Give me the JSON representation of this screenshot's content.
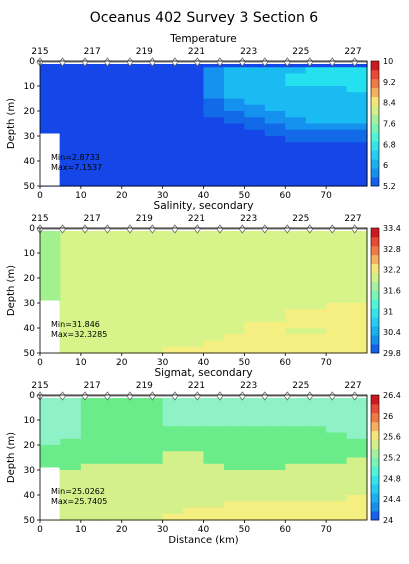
{
  "title": "Oceanus 402 Survey 3 Section 6",
  "chart_data": [
    {
      "type": "heatmap",
      "title": "Temperature",
      "ylabel": "Depth (m)",
      "xlabel": "",
      "xlim": [
        0,
        80
      ],
      "ylim": [
        50,
        0
      ],
      "x_ticks": [
        0,
        10,
        20,
        30,
        40,
        50,
        60,
        70
      ],
      "y_ticks": [
        0,
        10,
        20,
        30,
        40,
        50
      ],
      "station_labels": [
        "215",
        "217",
        "219",
        "221",
        "223",
        "225",
        "227"
      ],
      "station_x": [
        0,
        5.5,
        11,
        16.5,
        22,
        27.5,
        33,
        38.5,
        44,
        49.5,
        55,
        60.5,
        66,
        71.5,
        77
      ],
      "colorbar": {
        "ticks": [
          "5.2",
          "6",
          "6.8",
          "7.6",
          "8.4",
          "9.2",
          "10"
        ],
        "min": 5.2,
        "max": 10,
        "colors": [
          "#1560ec",
          "#1590ec",
          "#1ab0f0",
          "#25cdf2",
          "#33e5ea",
          "#50f5d8",
          "#7af5b8",
          "#a6f0a0",
          "#d3f08a",
          "#f5e67a",
          "#f5b060",
          "#ef7a45",
          "#e84a35",
          "#cc1a20"
        ]
      },
      "annotations": [
        "Min=2.8733",
        "Max=7.1537"
      ],
      "field_colors": [
        "#1547e8",
        "#136ae8",
        "#1591f0",
        "#1abaf2",
        "#25e0ee"
      ],
      "field": [
        [
          0,
          0,
          0,
          0,
          0,
          0,
          0,
          0,
          0,
          0,
          0,
          0,
          0,
          0,
          0,
          0
        ],
        [
          0,
          0,
          0,
          0,
          0,
          0,
          0,
          0,
          2,
          3,
          3,
          3,
          3,
          4,
          4,
          4
        ],
        [
          0,
          0,
          0,
          0,
          0,
          0,
          0,
          0,
          2,
          3,
          3,
          3,
          4,
          4,
          4,
          4
        ],
        [
          0,
          0,
          0,
          0,
          0,
          0,
          0,
          0,
          2,
          3,
          3,
          3,
          4,
          4,
          4,
          4
        ],
        [
          0,
          0,
          0,
          0,
          0,
          0,
          0,
          0,
          2,
          3,
          3,
          3,
          3,
          3,
          3,
          4
        ],
        [
          0,
          0,
          0,
          0,
          0,
          0,
          0,
          0,
          2,
          3,
          3,
          3,
          3,
          3,
          3,
          3
        ],
        [
          0,
          0,
          0,
          0,
          0,
          0,
          0,
          0,
          1,
          2,
          3,
          3,
          3,
          3,
          3,
          3
        ],
        [
          0,
          0,
          0,
          0,
          0,
          0,
          0,
          0,
          1,
          2,
          2,
          3,
          3,
          3,
          3,
          3
        ],
        [
          0,
          0,
          0,
          0,
          0,
          0,
          0,
          0,
          1,
          1,
          2,
          2,
          3,
          3,
          3,
          3
        ],
        [
          0,
          0,
          0,
          0,
          0,
          0,
          0,
          0,
          0,
          1,
          1,
          2,
          2,
          3,
          3,
          3
        ],
        [
          0,
          0,
          0,
          0,
          0,
          0,
          0,
          0,
          0,
          0,
          1,
          1,
          2,
          2,
          2,
          2
        ],
        [
          0,
          0,
          0,
          0,
          0,
          0,
          0,
          0,
          0,
          0,
          0,
          1,
          1,
          1,
          1,
          1
        ],
        [
          0,
          0,
          0,
          0,
          0,
          0,
          0,
          0,
          0,
          0,
          0,
          0,
          1,
          1,
          1,
          1
        ],
        [
          0,
          0,
          0,
          0,
          0,
          0,
          0,
          0,
          0,
          0,
          0,
          0,
          0,
          0,
          0,
          0
        ],
        [
          0,
          0,
          0,
          0,
          0,
          0,
          0,
          0,
          0,
          0,
          0,
          0,
          0,
          0,
          0,
          0
        ],
        [
          0,
          0,
          0,
          0,
          0,
          0,
          0,
          0,
          0,
          0,
          0,
          0,
          0,
          0,
          0,
          0
        ],
        [
          0,
          0,
          0,
          0,
          0,
          0,
          0,
          0,
          0,
          0,
          0,
          0,
          0,
          0,
          0,
          0
        ],
        [
          0,
          0,
          0,
          0,
          0,
          0,
          0,
          0,
          0,
          0,
          0,
          0,
          0,
          0,
          0,
          0
        ],
        [
          0,
          0,
          0,
          0,
          0,
          0,
          0,
          0,
          0,
          0,
          0,
          0,
          0,
          0,
          0,
          0
        ],
        [
          0,
          0,
          0,
          0,
          0,
          0,
          0,
          0,
          0,
          0,
          0,
          0,
          0,
          0,
          0,
          0
        ]
      ]
    },
    {
      "type": "heatmap",
      "title": "Salinity, secondary",
      "ylabel": "Depth (m)",
      "xlabel": "",
      "xlim": [
        0,
        80
      ],
      "ylim": [
        50,
        0
      ],
      "x_ticks": [
        0,
        10,
        20,
        30,
        40,
        50,
        60,
        70
      ],
      "y_ticks": [
        0,
        10,
        20,
        30,
        40,
        50
      ],
      "station_labels": [
        "215",
        "217",
        "219",
        "221",
        "223",
        "225",
        "227"
      ],
      "station_x": [
        0,
        5.5,
        11,
        16.5,
        22,
        27.5,
        33,
        38.5,
        44,
        49.5,
        55,
        60.5,
        66,
        71.5,
        77
      ],
      "colorbar": {
        "ticks": [
          "29.8",
          "30.4",
          "31",
          "31.6",
          "32.2",
          "32.8",
          "33.4"
        ],
        "min": 29.8,
        "max": 33.4,
        "colors": [
          "#1560ec",
          "#1590ec",
          "#1ab0f0",
          "#25cdf2",
          "#33e5ea",
          "#50f5d8",
          "#7af5b8",
          "#a6f0a0",
          "#d3f08a",
          "#f5e67a",
          "#f5b060",
          "#ef7a45",
          "#e84a35",
          "#cc1a20"
        ]
      },
      "annotations": [
        "Min=31.846",
        "Max=32.3285"
      ],
      "field_colors": [
        "#a2f08e",
        "#d6f48a",
        "#f5ef82"
      ],
      "field": [
        [
          0,
          1,
          1,
          1,
          1,
          1,
          1,
          1,
          1,
          1,
          1,
          1,
          1,
          1,
          1,
          1
        ],
        [
          0,
          1,
          1,
          1,
          1,
          1,
          1,
          1,
          1,
          1,
          1,
          1,
          1,
          1,
          1,
          1
        ],
        [
          0,
          1,
          1,
          1,
          1,
          1,
          1,
          1,
          1,
          1,
          1,
          1,
          1,
          1,
          1,
          1
        ],
        [
          0,
          1,
          1,
          1,
          1,
          1,
          1,
          1,
          1,
          1,
          1,
          1,
          1,
          1,
          1,
          1
        ],
        [
          0,
          1,
          1,
          1,
          1,
          1,
          1,
          1,
          1,
          1,
          1,
          1,
          1,
          1,
          1,
          1
        ],
        [
          0,
          1,
          1,
          1,
          1,
          1,
          1,
          1,
          1,
          1,
          1,
          1,
          1,
          1,
          1,
          1
        ],
        [
          0,
          1,
          1,
          1,
          1,
          1,
          1,
          1,
          1,
          1,
          1,
          1,
          1,
          1,
          1,
          1
        ],
        [
          0,
          1,
          1,
          1,
          1,
          1,
          1,
          1,
          1,
          1,
          1,
          1,
          1,
          1,
          1,
          1
        ],
        [
          0,
          1,
          1,
          1,
          1,
          1,
          1,
          1,
          1,
          1,
          1,
          1,
          1,
          1,
          1,
          1
        ],
        [
          0,
          1,
          1,
          1,
          1,
          1,
          1,
          1,
          1,
          1,
          1,
          1,
          1,
          1,
          1,
          1
        ],
        [
          0,
          1,
          1,
          1,
          1,
          1,
          1,
          1,
          1,
          1,
          1,
          1,
          1,
          1,
          1,
          1
        ],
        [
          0,
          1,
          1,
          1,
          1,
          1,
          1,
          1,
          1,
          1,
          1,
          1,
          1,
          1,
          1,
          1
        ],
        [
          1,
          1,
          1,
          1,
          1,
          1,
          1,
          1,
          1,
          1,
          1,
          1,
          1,
          1,
          2,
          2
        ],
        [
          1,
          1,
          1,
          1,
          1,
          1,
          1,
          1,
          1,
          1,
          1,
          1,
          2,
          2,
          2,
          2
        ],
        [
          1,
          1,
          1,
          1,
          1,
          1,
          1,
          1,
          1,
          1,
          1,
          1,
          2,
          2,
          2,
          2
        ],
        [
          1,
          1,
          1,
          1,
          1,
          1,
          1,
          1,
          1,
          1,
          2,
          2,
          2,
          2,
          2,
          2
        ],
        [
          1,
          1,
          1,
          1,
          1,
          1,
          1,
          1,
          1,
          1,
          2,
          2,
          1,
          1,
          2,
          2
        ],
        [
          1,
          1,
          1,
          1,
          1,
          1,
          1,
          1,
          1,
          2,
          2,
          2,
          2,
          2,
          2,
          2
        ],
        [
          1,
          1,
          1,
          1,
          1,
          1,
          1,
          1,
          2,
          2,
          2,
          2,
          2,
          2,
          2,
          2
        ],
        [
          1,
          1,
          1,
          1,
          1,
          1,
          2,
          2,
          2,
          2,
          2,
          2,
          2,
          2,
          2,
          2
        ]
      ]
    },
    {
      "type": "heatmap",
      "title": "Sigmat, secondary",
      "ylabel": "Depth (m)",
      "xlabel": "Distance (km)",
      "xlim": [
        0,
        80
      ],
      "ylim": [
        50,
        0
      ],
      "x_ticks": [
        0,
        10,
        20,
        30,
        40,
        50,
        60,
        70
      ],
      "y_ticks": [
        0,
        10,
        20,
        30,
        40,
        50
      ],
      "station_labels": [
        "215",
        "217",
        "219",
        "221",
        "223",
        "225",
        "227"
      ],
      "station_x": [
        0,
        5.5,
        11,
        16.5,
        22,
        27.5,
        33,
        38.5,
        44,
        49.5,
        55,
        60.5,
        66,
        71.5,
        77
      ],
      "colorbar": {
        "ticks": [
          "24",
          "24.4",
          "24.8",
          "25.2",
          "25.6",
          "26",
          "26.4"
        ],
        "min": 24,
        "max": 26.4,
        "colors": [
          "#1560ec",
          "#1590ec",
          "#1ab0f0",
          "#25cdf2",
          "#33e5ea",
          "#50f5d8",
          "#7af5b8",
          "#a6f0a0",
          "#d3f08a",
          "#f5e67a",
          "#f5b060",
          "#ef7a45",
          "#e84a35",
          "#cc1a20"
        ]
      },
      "annotations": [
        "Min=25.0262",
        "Max=25.7405"
      ],
      "field_colors": [
        "#8ef2c6",
        "#6aec8a",
        "#d3f08a",
        "#f5ef82"
      ],
      "field": [
        [
          0,
          0,
          1,
          1,
          1,
          1,
          0,
          0,
          0,
          0,
          0,
          0,
          0,
          0,
          0,
          0
        ],
        [
          0,
          0,
          1,
          1,
          1,
          1,
          0,
          0,
          0,
          0,
          0,
          0,
          0,
          0,
          0,
          0
        ],
        [
          0,
          0,
          1,
          1,
          1,
          1,
          0,
          0,
          0,
          0,
          0,
          0,
          0,
          0,
          0,
          0
        ],
        [
          0,
          0,
          1,
          1,
          1,
          1,
          0,
          0,
          0,
          0,
          0,
          0,
          0,
          0,
          0,
          0
        ],
        [
          0,
          0,
          1,
          1,
          1,
          1,
          0,
          0,
          0,
          0,
          0,
          0,
          0,
          0,
          0,
          0
        ],
        [
          0,
          0,
          1,
          1,
          1,
          1,
          1,
          1,
          1,
          1,
          1,
          1,
          1,
          1,
          0,
          0
        ],
        [
          0,
          0,
          1,
          1,
          1,
          1,
          1,
          1,
          1,
          1,
          1,
          1,
          1,
          1,
          1,
          0
        ],
        [
          0,
          1,
          1,
          1,
          1,
          1,
          1,
          1,
          1,
          1,
          1,
          1,
          1,
          1,
          1,
          1
        ],
        [
          1,
          1,
          1,
          1,
          1,
          1,
          1,
          1,
          1,
          1,
          1,
          1,
          1,
          1,
          1,
          1
        ],
        [
          1,
          1,
          1,
          1,
          1,
          1,
          2,
          2,
          1,
          1,
          1,
          1,
          1,
          1,
          1,
          1
        ],
        [
          1,
          1,
          1,
          1,
          1,
          1,
          2,
          2,
          1,
          1,
          1,
          1,
          1,
          1,
          1,
          2
        ],
        [
          1,
          1,
          2,
          2,
          2,
          2,
          2,
          2,
          2,
          1,
          1,
          1,
          2,
          2,
          2,
          2
        ],
        [
          2,
          2,
          2,
          2,
          2,
          2,
          2,
          2,
          2,
          2,
          2,
          2,
          2,
          2,
          2,
          2
        ],
        [
          2,
          2,
          2,
          2,
          2,
          2,
          2,
          2,
          2,
          2,
          2,
          2,
          2,
          2,
          2,
          2
        ],
        [
          2,
          2,
          2,
          2,
          2,
          2,
          2,
          2,
          2,
          2,
          2,
          2,
          2,
          2,
          2,
          2
        ],
        [
          2,
          2,
          2,
          2,
          2,
          2,
          2,
          2,
          2,
          2,
          2,
          2,
          2,
          2,
          2,
          2
        ],
        [
          2,
          2,
          2,
          2,
          2,
          2,
          2,
          2,
          2,
          2,
          2,
          2,
          2,
          2,
          2,
          3
        ],
        [
          2,
          2,
          2,
          2,
          2,
          2,
          2,
          2,
          2,
          3,
          3,
          3,
          3,
          3,
          3,
          3
        ],
        [
          2,
          2,
          2,
          2,
          2,
          2,
          2,
          3,
          3,
          3,
          3,
          3,
          3,
          3,
          3,
          3
        ],
        [
          2,
          2,
          2,
          2,
          2,
          2,
          3,
          3,
          3,
          3,
          3,
          3,
          3,
          3,
          3,
          3
        ]
      ]
    }
  ]
}
